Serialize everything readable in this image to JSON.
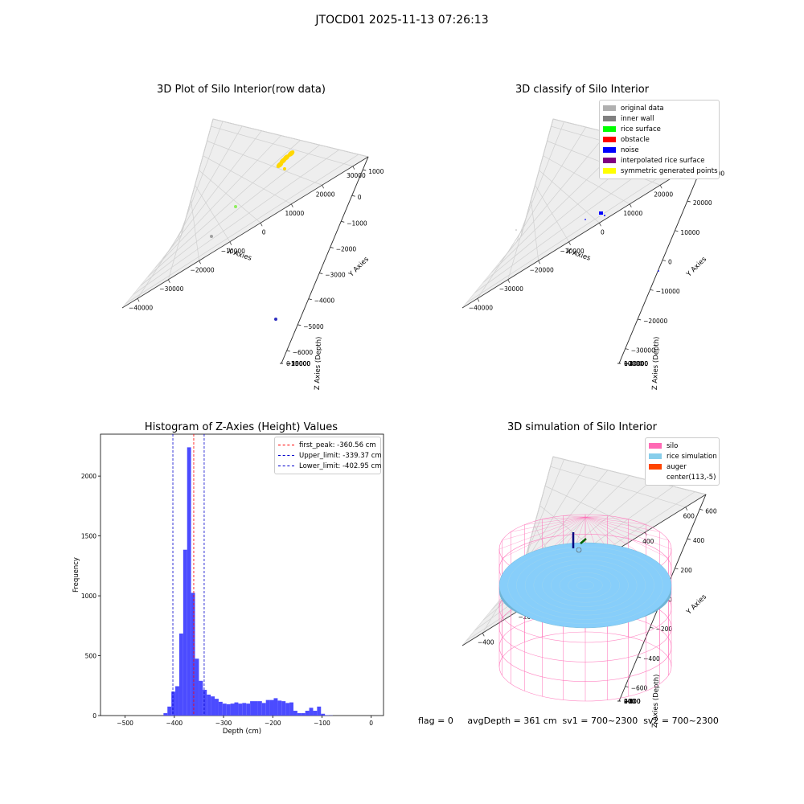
{
  "figure": {
    "title": "JTOCD01 2025-11-13 07:26:13",
    "footer": "flag = 0     avgDepth = 361 cm  sv1 = 700~2300  sv2 = 700~2300"
  },
  "colors": {
    "panel_bg": "#f2f2f2",
    "grid": "#d0d0d0",
    "hist_bar": "#4b4bff",
    "peak_line": "#ff0000",
    "limit_line": "#0000cc",
    "silo": "#ff69b4",
    "rice": "#87cefa",
    "auger": "#ff4500"
  },
  "panels": {
    "raw": {
      "title": "3D Plot of Silo Interior(row data)",
      "xlabel": "X Axies",
      "ylabel": "Y Axies",
      "zlabel": "Z Axies (Depth)",
      "xticks": [
        "−40000",
        "−30000",
        "−20000",
        "−10000",
        "0",
        "10000",
        "20000",
        "30000"
      ],
      "yticks": [
        "1000",
        "0",
        "−1000",
        "−2000",
        "−3000",
        "−4000",
        "−5000",
        "−6000"
      ],
      "zticks": [
        "0",
        "−5000",
        "−10000",
        "−15000",
        "−20000",
        "−25000"
      ]
    },
    "classify": {
      "title": "3D classify of Silo Interior",
      "xlabel": "X Axies",
      "ylabel": "Y Axies",
      "zlabel": "Z Axies (Depth)",
      "xticks": [
        "−40000",
        "−30000",
        "−20000",
        "−10000",
        "0",
        "10000",
        "20000",
        "30000"
      ],
      "yticks": [
        "30000",
        "20000",
        "10000",
        "0",
        "−10000",
        "−20000",
        "−30000"
      ],
      "zticks": [
        "10000",
        "0",
        "−10000",
        "−20000",
        "−30000",
        "−40000"
      ],
      "legend": [
        {
          "label": "original data",
          "color": "#b0b0b0"
        },
        {
          "label": "inner wall",
          "color": "#808080"
        },
        {
          "label": "rice surface",
          "color": "#00ff00"
        },
        {
          "label": "obstacle",
          "color": "#ff0000"
        },
        {
          "label": "noise",
          "color": "#0000ff"
        },
        {
          "label": "interpolated rice surface",
          "color": "#800080"
        },
        {
          "label": "symmetric generated points",
          "color": "#ffff00"
        }
      ]
    },
    "histogram": {
      "title": "Histogram of Z-Axies (Height) Values",
      "xlabel": "Depth (cm)",
      "ylabel": "Frequency",
      "xticks": [
        "−500",
        "−400",
        "−300",
        "−200",
        "−100",
        "0"
      ],
      "yticks": [
        "0",
        "500",
        "1000",
        "1500",
        "2000"
      ],
      "legend": [
        {
          "label": "first_peak: -360.56 cm",
          "color": "#ff0000"
        },
        {
          "label": "Upper_limit: -339.37 cm",
          "color": "#0000cc"
        },
        {
          "label": "Lower_limit: -402.95 cm",
          "color": "#0000cc"
        }
      ]
    },
    "simulation": {
      "title": "3D simulation of Silo Interior",
      "xlabel": "X Axies",
      "ylabel": "Y Axies",
      "zlabel": "Z Axies (Depth)",
      "xticks": [
        "−400",
        "−200",
        "0",
        "200",
        "400",
        "600"
      ],
      "yticks": [
        "600",
        "400",
        "200",
        "0",
        "−200",
        "−400",
        "−600"
      ],
      "zticks": [
        "400",
        "200",
        "0",
        "−200",
        "−400",
        "−600",
        "−800"
      ],
      "legend": [
        {
          "label": "silo",
          "color": "#ff69b4"
        },
        {
          "label": "rice simulation",
          "color": "#87ceeb"
        },
        {
          "label": "auger",
          "color": "#ff4500"
        },
        {
          "label": "center(113,-5)",
          "color": ""
        }
      ]
    }
  },
  "chart_data": [
    {
      "type": "scatter",
      "title": "3D Plot of Silo Interior(row data)",
      "xlabel": "X Axies",
      "ylabel": "Y Axies",
      "zlabel": "Z Axies (Depth)",
      "xlim": [
        -42000,
        33000
      ],
      "ylim": [
        -6500,
        1200
      ],
      "zlim": [
        -28000,
        1000
      ],
      "series": [
        {
          "color": "#ffd700",
          "points": [
            [
              -2000,
              800,
              -1500
            ],
            [
              -1500,
              700,
              -1000
            ],
            [
              -1000,
              600,
              -500
            ],
            [
              -2500,
              900,
              -2000
            ]
          ]
        },
        {
          "color": "#90ee60",
          "points": [
            [
              -36000,
              -1200,
              -5000
            ]
          ]
        },
        {
          "color": "#a0a0a0",
          "points": [
            [
              -40000,
              -3500,
              -8000
            ]
          ]
        },
        {
          "color": "#3030c0",
          "points": [
            [
              24000,
              -5800,
              -9000
            ]
          ]
        }
      ]
    },
    {
      "type": "scatter",
      "title": "3D classify of Silo Interior",
      "xlabel": "X Axies",
      "ylabel": "Y Axies",
      "zlabel": "Z Axies (Depth)",
      "xlim": [
        -42000,
        31000
      ],
      "ylim": [
        -35000,
        33000
      ],
      "zlim": [
        -45000,
        12000
      ],
      "series": [
        {
          "name": "noise",
          "color": "#0000ff",
          "points": [
            [
              -3000,
              15000,
              -5000
            ],
            [
              -2500,
              15500,
              -5500
            ],
            [
              -20000,
              0,
              -10000
            ],
            [
              24000,
              -28000,
              -15000
            ]
          ]
        },
        {
          "name": "original data",
          "color": "#b0b0b0",
          "points": [
            [
              -40000,
              -8000,
              -12000
            ]
          ]
        }
      ]
    },
    {
      "type": "bar",
      "title": "Histogram of Z-Axies (Height) Values",
      "xlabel": "Depth (cm)",
      "ylabel": "Frequency",
      "xlim": [
        -550,
        25
      ],
      "ylim": [
        0,
        2350
      ],
      "bin_width": 8,
      "bin_starts": [
        -422,
        -414,
        -406,
        -398,
        -390,
        -382,
        -374,
        -366,
        -358,
        -350,
        -342,
        -334,
        -326,
        -318,
        -310,
        -302,
        -294,
        -286,
        -278,
        -270,
        -262,
        -254,
        -246,
        -238,
        -230,
        -222,
        -214,
        -206,
        -198,
        -190,
        -182,
        -174,
        -166,
        -158,
        -150,
        -142,
        -134,
        -126,
        -118,
        -110,
        -102,
        -94,
        -86,
        -78,
        -70,
        -62,
        -54,
        -46,
        -38,
        -30,
        -22,
        -14
      ],
      "values": [
        20,
        75,
        200,
        245,
        685,
        1385,
        2240,
        1025,
        475,
        290,
        215,
        175,
        160,
        140,
        115,
        100,
        95,
        100,
        110,
        100,
        105,
        100,
        120,
        120,
        120,
        105,
        130,
        130,
        145,
        125,
        120,
        105,
        110,
        40,
        20,
        20,
        40,
        65,
        40,
        75,
        15,
        3,
        2,
        0,
        0,
        0,
        0,
        0,
        0,
        0,
        0,
        0
      ],
      "lines": [
        {
          "name": "first_peak",
          "x": -360.56,
          "color": "#ff0000"
        },
        {
          "name": "Upper_limit",
          "x": -339.37,
          "color": "#0000cc"
        },
        {
          "name": "Lower_limit",
          "x": -402.95,
          "color": "#0000cc"
        }
      ]
    },
    {
      "type": "surface",
      "title": "3D simulation of Silo Interior",
      "xlabel": "X Axies",
      "ylabel": "Y Axies",
      "zlabel": "Z Axies (Depth)",
      "xlim": [
        -550,
        700
      ],
      "ylim": [
        -650,
        650
      ],
      "zlim": [
        -900,
        450
      ],
      "silo": {
        "center": [
          113,
          -5
        ],
        "radius": 560,
        "z_top": 150,
        "z_bottom": -900
      },
      "rice_surface_z": -361
    }
  ]
}
